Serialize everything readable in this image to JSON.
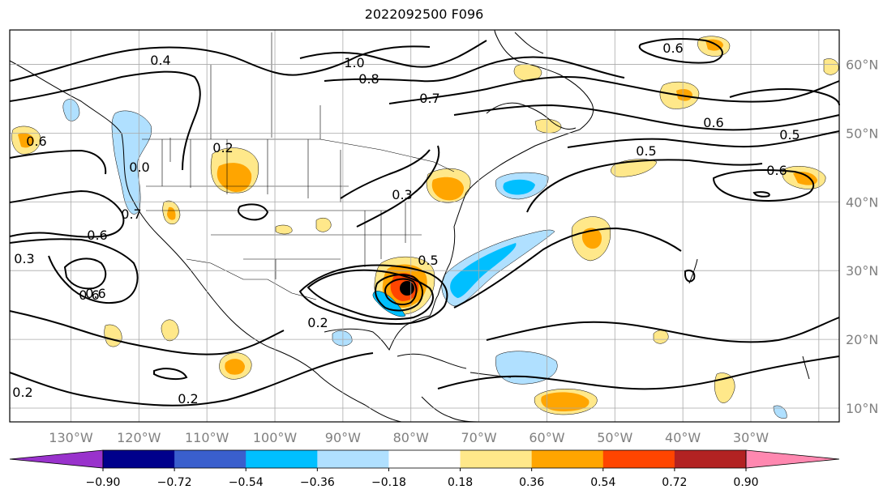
{
  "title": "2022092500 F096",
  "map": {
    "projection": "PlateCarree",
    "lon_range": [
      -139,
      -17
    ],
    "lat_range": [
      8,
      65
    ],
    "lon_ticks": [
      "130°W",
      "120°W",
      "110°W",
      "100°W",
      "90°W",
      "80°W",
      "70°W",
      "60°W",
      "50°W",
      "40°W",
      "30°W"
    ],
    "lat_ticks": [
      "10°N",
      "20°N",
      "30°N",
      "40°N",
      "50°N",
      "60°N"
    ],
    "grid": true,
    "contour_labels": [
      "0.4",
      "1.0",
      "0.8",
      "0.7",
      "0.6",
      "0.6",
      "0.5",
      "0.5",
      "0.6",
      "0.6",
      "0.2",
      "0.6",
      "0.6",
      "0.3",
      "0.6",
      "0.7",
      "0.3",
      "0.5",
      "0.2",
      "0.2",
      "0.2",
      "0.0"
    ]
  },
  "colorbar": {
    "ticks": [
      "−0.90",
      "−0.72",
      "−0.54",
      "−0.36",
      "−0.18",
      "0.18",
      "0.36",
      "0.54",
      "0.72",
      "0.90"
    ],
    "colors": [
      "#9932cc",
      "#00008b",
      "#3a5fcd",
      "#00bfff",
      "#b0e0ff",
      "#ffffff",
      "#ffe88a",
      "#ffa500",
      "#ff4500",
      "#b22222",
      "#ff88b0"
    ]
  },
  "colors": {
    "contour": "#000000",
    "coast": "#000000",
    "grid": "#a9a9a9"
  }
}
